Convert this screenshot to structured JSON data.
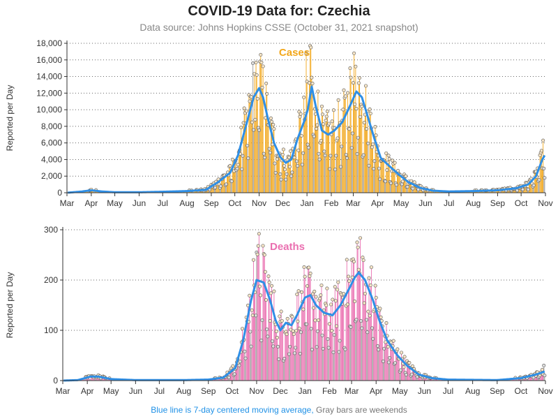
{
  "title": "COVID-19 Data for: Czechia",
  "subtitle": "Data source: Johns Hopkins CSSE (October 31, 2021 snapshot)",
  "footnote": {
    "blue_part": "Blue line is 7-day centered moving average,",
    "gray_part": "Gray bars are weekends"
  },
  "colors": {
    "cases": "#f2a71b",
    "deaths": "#ea6fb0",
    "average": "#2f8fe6",
    "weekend": "#999999"
  },
  "chart_data": [
    {
      "type": "bar",
      "panel_label": "Cases",
      "ylabel": "Reported per Day",
      "ylim": [
        0,
        18000
      ],
      "yticks": [
        0,
        2000,
        4000,
        6000,
        8000,
        10000,
        12000,
        14000,
        16000,
        18000
      ],
      "ytick_labels": [
        "0",
        "2,000",
        "4,000",
        "6,000",
        "8,000",
        "10,000",
        "12,000",
        "14,000",
        "16,000",
        "18,000"
      ],
      "xlim": [
        "2020-03-01",
        "2021-11-01"
      ],
      "xtick_labels": [
        "Mar",
        "Apr",
        "May",
        "Jun",
        "Jul",
        "Aug",
        "Sep",
        "Oct",
        "Nov",
        "Dec",
        "Jan",
        "Feb",
        "Mar",
        "Apr",
        "May",
        "Jun",
        "Jul",
        "Aug",
        "Sep",
        "Oct",
        "Nov"
      ],
      "grid": "horizontal-dotted",
      "moving_average_anchors": [
        [
          "2020-03-01",
          0
        ],
        [
          "2020-03-20",
          150
        ],
        [
          "2020-04-01",
          300
        ],
        [
          "2020-04-15",
          150
        ],
        [
          "2020-05-01",
          60
        ],
        [
          "2020-06-01",
          60
        ],
        [
          "2020-07-01",
          120
        ],
        [
          "2020-08-01",
          200
        ],
        [
          "2020-08-25",
          350
        ],
        [
          "2020-09-10",
          1300
        ],
        [
          "2020-09-25",
          2400
        ],
        [
          "2020-10-05",
          4500
        ],
        [
          "2020-10-15",
          8000
        ],
        [
          "2020-10-25",
          11500
        ],
        [
          "2020-11-01",
          12600
        ],
        [
          "2020-11-06",
          11500
        ],
        [
          "2020-11-12",
          9000
        ],
        [
          "2020-11-20",
          6000
        ],
        [
          "2020-11-28",
          4300
        ],
        [
          "2020-12-05",
          3600
        ],
        [
          "2020-12-12",
          4000
        ],
        [
          "2020-12-20",
          6500
        ],
        [
          "2020-12-28",
          8500
        ],
        [
          "2021-01-02",
          10000
        ],
        [
          "2021-01-07",
          12800
        ],
        [
          "2021-01-12",
          10500
        ],
        [
          "2021-01-20",
          7500
        ],
        [
          "2021-01-28",
          7000
        ],
        [
          "2021-02-05",
          7500
        ],
        [
          "2021-02-15",
          8500
        ],
        [
          "2021-02-25",
          10500
        ],
        [
          "2021-03-05",
          12200
        ],
        [
          "2021-03-12",
          11500
        ],
        [
          "2021-03-20",
          9000
        ],
        [
          "2021-03-28",
          6500
        ],
        [
          "2021-04-05",
          4200
        ],
        [
          "2021-04-15",
          3300
        ],
        [
          "2021-04-28",
          2200
        ],
        [
          "2021-05-10",
          1300
        ],
        [
          "2021-05-25",
          600
        ],
        [
          "2021-06-10",
          250
        ],
        [
          "2021-07-01",
          150
        ],
        [
          "2021-08-01",
          200
        ],
        [
          "2021-09-01",
          300
        ],
        [
          "2021-09-25",
          550
        ],
        [
          "2021-10-10",
          1000
        ],
        [
          "2021-10-20",
          2000
        ],
        [
          "2021-10-28",
          4000
        ],
        [
          "2021-10-31",
          4500
        ]
      ],
      "peak_points": [
        [
          "2020-10-24",
          15600
        ],
        [
          "2020-10-28",
          15700
        ],
        [
          "2020-11-02",
          15800
        ],
        [
          "2020-11-04",
          15700
        ],
        [
          "2020-12-31",
          16800
        ],
        [
          "2021-01-05",
          17700
        ],
        [
          "2021-01-06",
          17500
        ],
        [
          "2021-02-25",
          15000
        ],
        [
          "2021-03-02",
          16800
        ],
        [
          "2021-03-04",
          15200
        ],
        [
          "2021-10-29",
          6300
        ]
      ]
    },
    {
      "type": "bar",
      "panel_label": "Deaths",
      "ylabel": "Reported per Day",
      "ylim": [
        0,
        300
      ],
      "yticks": [
        0,
        100,
        200,
        300
      ],
      "ytick_labels": [
        "0",
        "100",
        "200",
        "300"
      ],
      "xlim": [
        "2020-03-01",
        "2021-11-01"
      ],
      "xtick_labels": [
        "Mar",
        "Apr",
        "May",
        "Jun",
        "Jul",
        "Aug",
        "Sep",
        "Oct",
        "Nov",
        "Dec",
        "Jan",
        "Feb",
        "Mar",
        "Apr",
        "May",
        "Jun",
        "Jul",
        "Aug",
        "Sep",
        "Oct",
        "Nov"
      ],
      "grid": "horizontal-dotted",
      "moving_average_anchors": [
        [
          "2020-03-01",
          0
        ],
        [
          "2020-03-20",
          1
        ],
        [
          "2020-04-05",
          8
        ],
        [
          "2020-04-15",
          8
        ],
        [
          "2020-05-01",
          3
        ],
        [
          "2020-06-01",
          1
        ],
        [
          "2020-08-01",
          1
        ],
        [
          "2020-09-01",
          2
        ],
        [
          "2020-09-20",
          6
        ],
        [
          "2020-10-05",
          25
        ],
        [
          "2020-10-15",
          80
        ],
        [
          "2020-10-25",
          160
        ],
        [
          "2020-11-01",
          200
        ],
        [
          "2020-11-10",
          195
        ],
        [
          "2020-11-18",
          160
        ],
        [
          "2020-11-25",
          120
        ],
        [
          "2020-12-01",
          100
        ],
        [
          "2020-12-08",
          115
        ],
        [
          "2020-12-15",
          110
        ],
        [
          "2020-12-22",
          130
        ],
        [
          "2021-01-01",
          165
        ],
        [
          "2021-01-08",
          170
        ],
        [
          "2021-01-15",
          150
        ],
        [
          "2021-01-25",
          135
        ],
        [
          "2021-02-05",
          130
        ],
        [
          "2021-02-15",
          150
        ],
        [
          "2021-02-25",
          180
        ],
        [
          "2021-03-05",
          205
        ],
        [
          "2021-03-10",
          215
        ],
        [
          "2021-03-18",
          200
        ],
        [
          "2021-03-28",
          160
        ],
        [
          "2021-04-05",
          120
        ],
        [
          "2021-04-15",
          80
        ],
        [
          "2021-04-28",
          50
        ],
        [
          "2021-05-10",
          30
        ],
        [
          "2021-05-25",
          12
        ],
        [
          "2021-06-10",
          5
        ],
        [
          "2021-07-01",
          2
        ],
        [
          "2021-09-01",
          1
        ],
        [
          "2021-10-01",
          5
        ],
        [
          "2021-10-20",
          12
        ],
        [
          "2021-10-31",
          18
        ]
      ],
      "peak_points": [
        [
          "2020-10-28",
          240
        ],
        [
          "2020-11-01",
          255
        ],
        [
          "2020-11-04",
          292
        ],
        [
          "2020-11-11",
          250
        ],
        [
          "2021-01-06",
          225
        ],
        [
          "2021-03-01",
          240
        ],
        [
          "2021-03-08",
          275
        ],
        [
          "2021-03-09",
          265
        ],
        [
          "2021-03-15",
          245
        ],
        [
          "2021-10-30",
          30
        ]
      ]
    }
  ]
}
